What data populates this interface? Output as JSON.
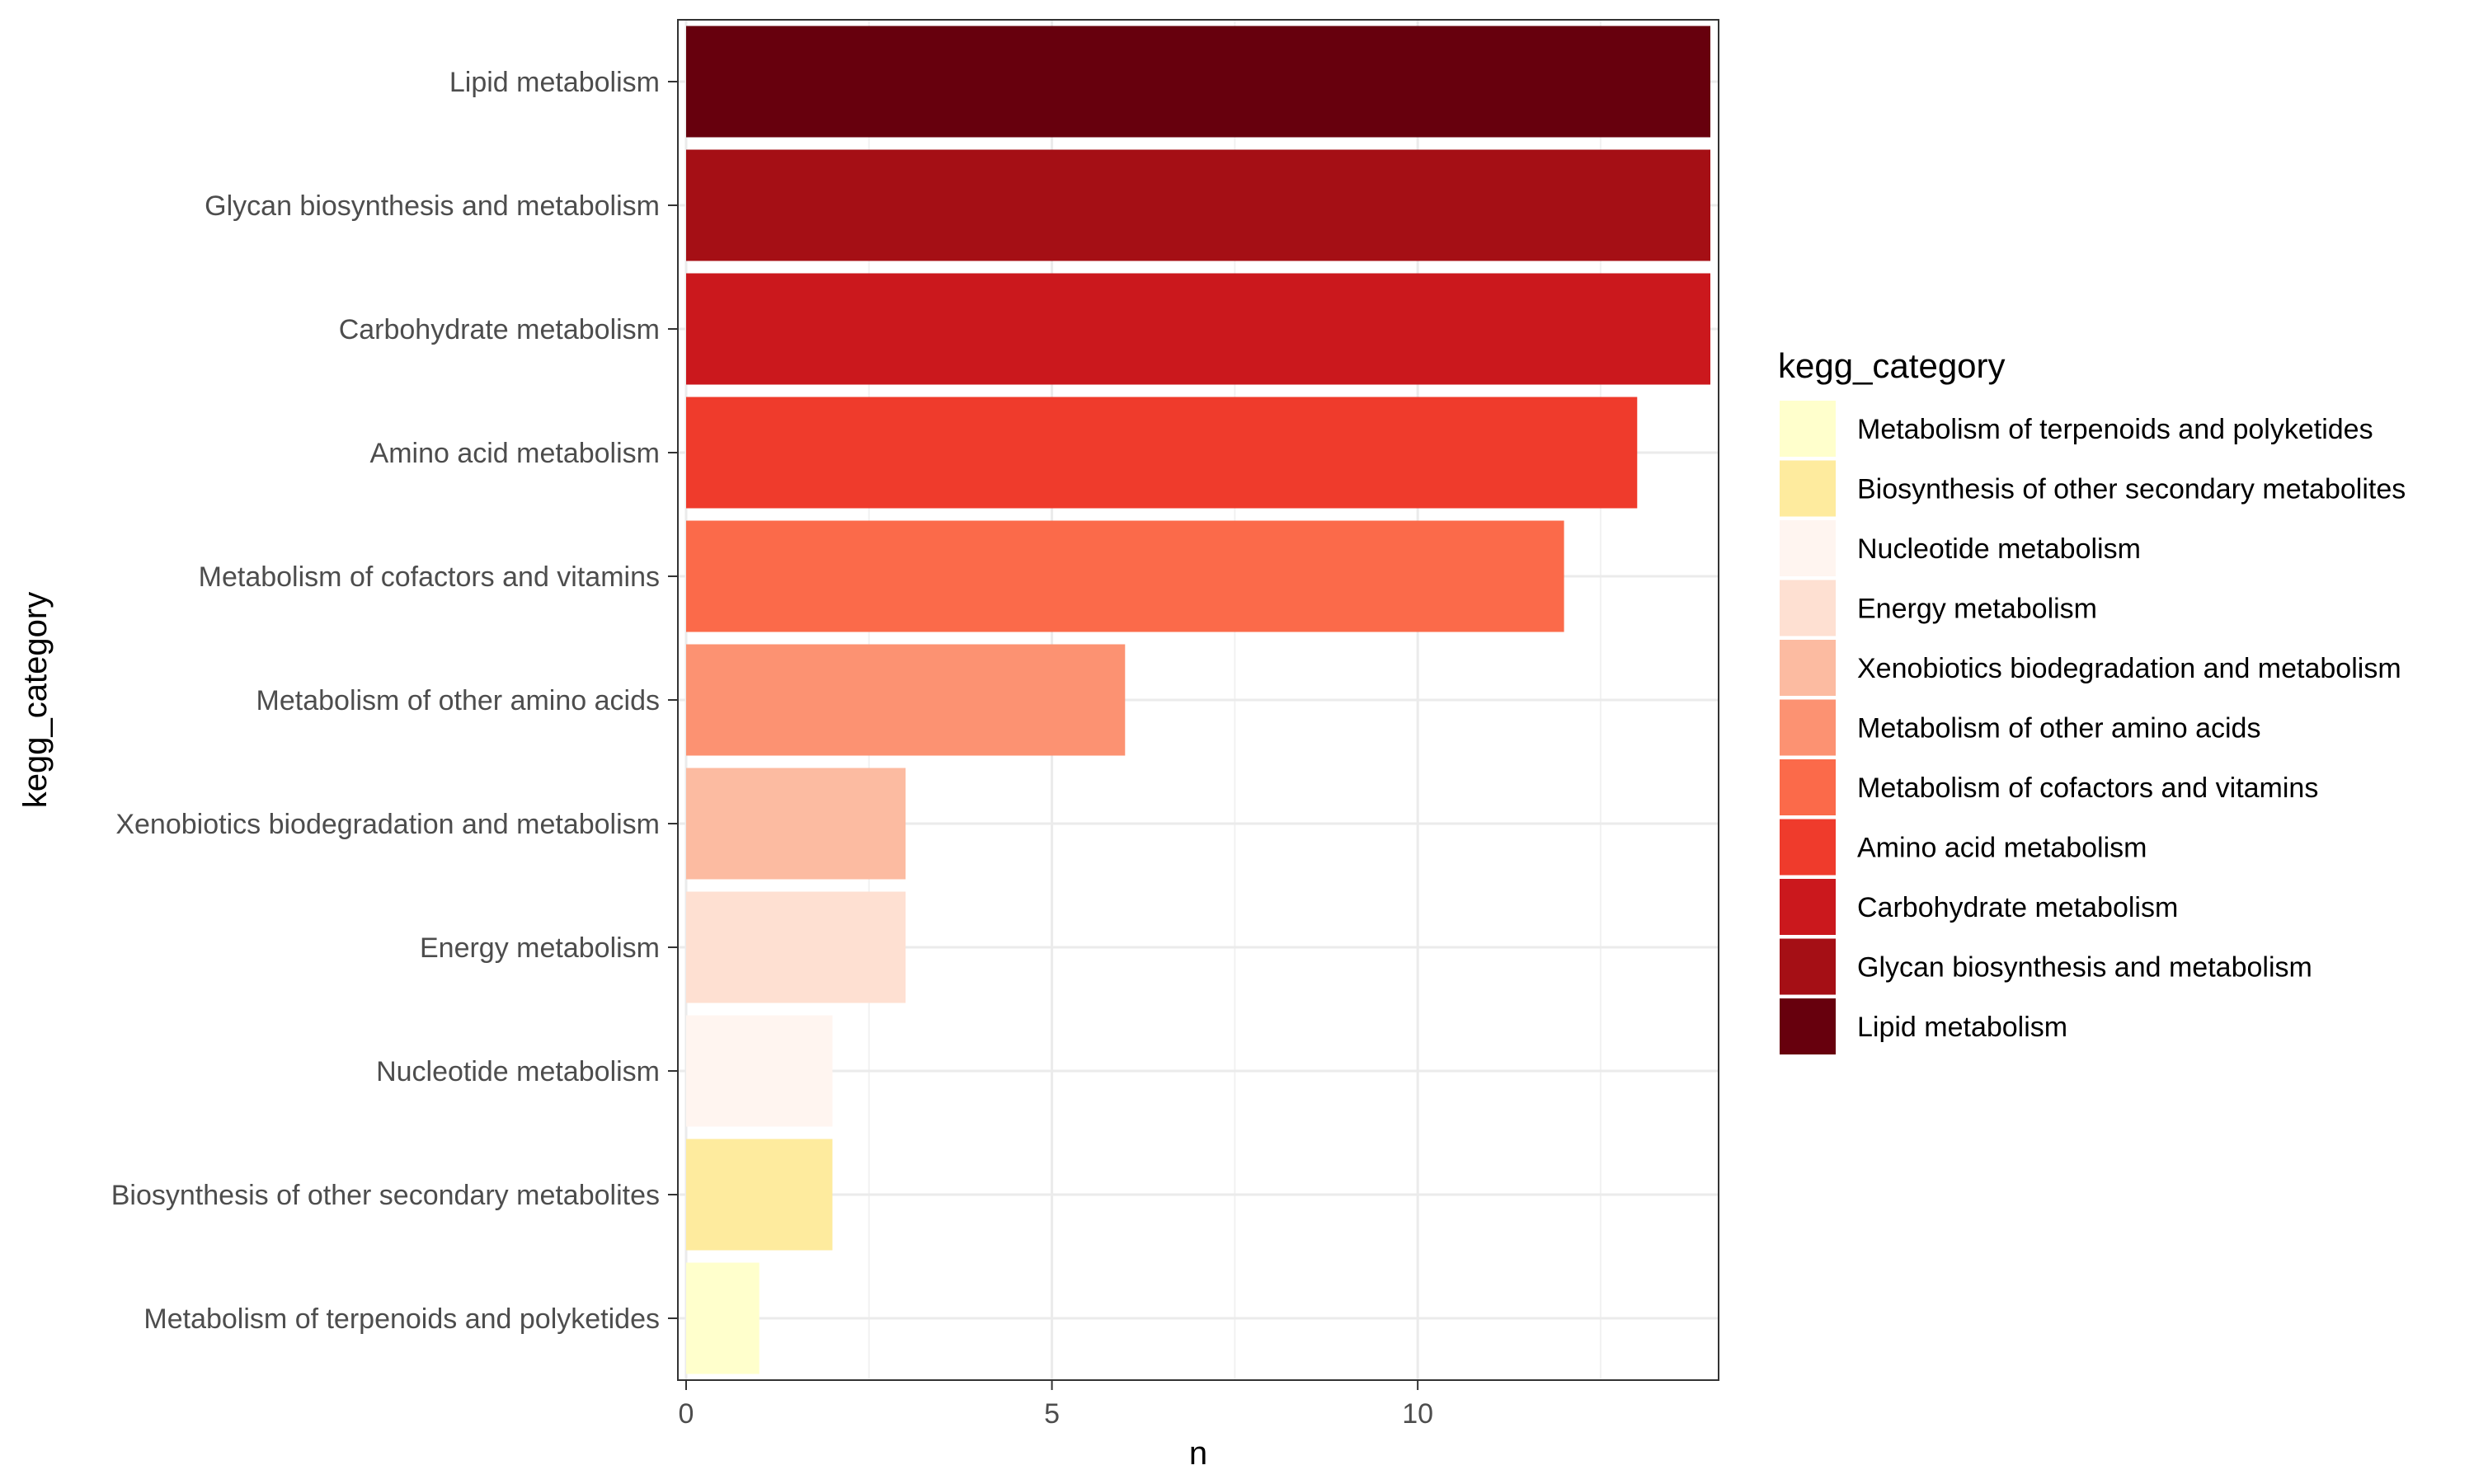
{
  "chart_data": {
    "type": "bar",
    "orientation": "horizontal",
    "title": "",
    "xlabel": "n",
    "ylabel": "kegg_category",
    "xlim": [
      0,
      14
    ],
    "x_ticks": [
      0,
      5,
      10
    ],
    "grid": true,
    "categories": [
      "Lipid metabolism",
      "Glycan biosynthesis and metabolism",
      "Carbohydrate metabolism",
      "Amino acid metabolism",
      "Metabolism of cofactors and vitamins",
      "Metabolism of other amino acids",
      "Xenobiotics biodegradation and metabolism",
      "Energy metabolism",
      "Nucleotide metabolism",
      "Biosynthesis of other secondary metabolites",
      "Metabolism of terpenoids and polyketides"
    ],
    "values": [
      14,
      14,
      14,
      13,
      12,
      6,
      3,
      3,
      2,
      2,
      1
    ],
    "colors": [
      "#67000D",
      "#A50F15",
      "#CB181D",
      "#EF3B2C",
      "#FB6A4A",
      "#FC9272",
      "#FCBBA1",
      "#FEE0D2",
      "#FFF5F0",
      "#FEEB9E",
      "#FFFFCC"
    ],
    "legend": {
      "title": "kegg_category",
      "position": "right",
      "entries": [
        {
          "label": "Metabolism of terpenoids and polyketides",
          "color": "#FFFFCC"
        },
        {
          "label": "Biosynthesis of other secondary metabolites",
          "color": "#FEEB9E"
        },
        {
          "label": "Nucleotide metabolism",
          "color": "#FFF5F0"
        },
        {
          "label": "Energy metabolism",
          "color": "#FEE0D2"
        },
        {
          "label": "Xenobiotics biodegradation and metabolism",
          "color": "#FCBBA1"
        },
        {
          "label": "Metabolism of other amino acids",
          "color": "#FC9272"
        },
        {
          "label": "Metabolism of cofactors and vitamins",
          "color": "#FB6A4A"
        },
        {
          "label": "Amino acid metabolism",
          "color": "#EF3B2C"
        },
        {
          "label": "Carbohydrate metabolism",
          "color": "#CB181D"
        },
        {
          "label": "Glycan biosynthesis and metabolism",
          "color": "#A50F15"
        },
        {
          "label": "Lipid metabolism",
          "color": "#67000D"
        }
      ]
    }
  }
}
